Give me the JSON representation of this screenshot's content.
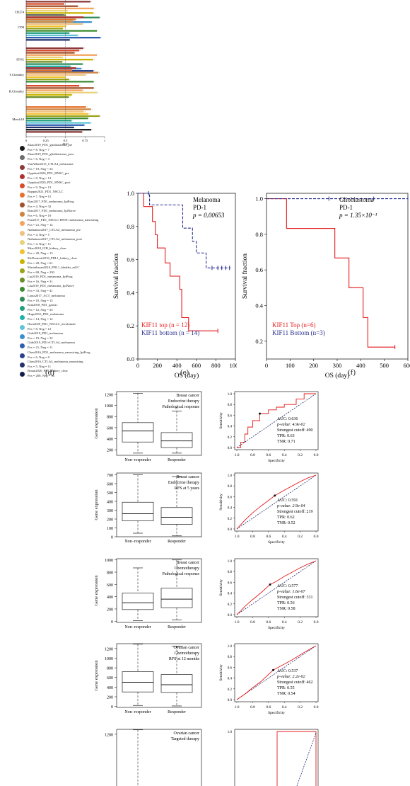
{
  "panel_labels": {
    "d": "(d)",
    "e": "(e)",
    "f": "(f)"
  },
  "colors": {
    "red": "#e41a1c",
    "blue": "#2a2f8f",
    "black": "#000000"
  },
  "legend": [
    {
      "name": "Zhao2019_PD1_glioblastoma_pre",
      "count": "Pos = 8, Neg = 7",
      "color": "#1a1a1a"
    },
    {
      "name": "Zhao2019_PD1_glioblastoma_post",
      "count": "Pos = 6, Neg = 3",
      "color": "#6e6e6e"
    },
    {
      "name": "VanAllen2015_CTLA4_melanoma",
      "count": "Pos = 19, Neg = 23",
      "color": "#8c3a3a"
    },
    {
      "name": "Uppaluri2020_PD1_HNSC_pre",
      "count": "Pos = 8, Neg = 13",
      "color": "#b33030"
    },
    {
      "name": "Uppaluri2020_PD1_HNSC_post",
      "count": "Pos = 9, Neg = 13",
      "color": "#d94b2b"
    },
    {
      "name": "Ruppin2021_PD1_NSCLC",
      "count": "Pos = 7, Neg = 15",
      "color": "#e8722c"
    },
    {
      "name": "Riaz2017_PD1_melanoma_IpiProg",
      "count": "Pos = 4, Neg = 32",
      "color": "#a0522d"
    },
    {
      "name": "Riaz2017_PD1_melanoma_IpiNaive",
      "count": "Pos = 6, Neg = 19",
      "color": "#cd853f"
    },
    {
      "name": "Prat2017_PD1_NSCLC-HNSC-melanoma_nanostring",
      "count": "Pos = 21, Neg = 12",
      "color": "#f4a460"
    },
    {
      "name": "Nathanson2017_CTLA4_melanoma_pre",
      "count": "Pos = 4, Neg = 5",
      "color": "#f0c080"
    },
    {
      "name": "Nathanson2017_CTLA4_melanoma_post",
      "count": "Pos = 4, Neg = 11",
      "color": "#e9d27a"
    },
    {
      "name": "Miao2018_ICB_kidney_clear",
      "count": "Pos = 20, Neg = 13",
      "color": "#f2c12e"
    },
    {
      "name": "McDermott2018_PDL1_kidney_clear",
      "count": "Pos = 20, Neg = 61",
      "color": "#c8b400"
    },
    {
      "name": "Mariathasan2018_PDL1_bladder_mUC",
      "count": "Pos = 68, Neg = 230",
      "color": "#9aa31a"
    },
    {
      "name": "Liu2019_PD1_melanoma_IpiProg",
      "count": "Pos = 16, Neg = 31",
      "color": "#6b8e23"
    },
    {
      "name": "Liu2019_PD1_melanoma_IpiNaive",
      "count": "Pos = 33, Neg = 41",
      "color": "#3c8d2f"
    },
    {
      "name": "Lauss2017_ACT_melanoma",
      "count": "Pos = 10, Neg = 15",
      "color": "#2e8b57"
    },
    {
      "name": "Kim2018_PD1_gastric",
      "count": "Pos = 12, Neg = 33",
      "color": "#20a080"
    },
    {
      "name": "Hugo2016_PD1_melanoma",
      "count": "Pos = 14, Neg = 12",
      "color": "#20b2aa"
    },
    {
      "name": "Hwu2020_PD1_NSCLC_nivolumab",
      "count": "Pos = 8, Neg = 12",
      "color": "#5fc4d6"
    },
    {
      "name": "Gide2019_PD1_melanoma",
      "count": "Pos = 19, Neg = 32",
      "color": "#3a8fd0"
    },
    {
      "name": "Gide2019_PD1+CTLA4_melanoma",
      "count": "Pos = 21, Neg = 11",
      "color": "#2c5fb0"
    },
    {
      "name": "Chen2016_PD1_melanoma_nanostring_IpiProg",
      "count": "Pos = 6, Neg = 9",
      "color": "#2a3f8f"
    },
    {
      "name": "Chen2016_CTLA4_melanoma_nanostring",
      "count": "Pos = 5, Neg = 11",
      "color": "#22306e"
    },
    {
      "name": "Braun2020_PD1_kidney_clear",
      "count": "Pos = 200, Neg = 94",
      "color": "#141c4a"
    }
  ],
  "chart_data": [
    {
      "type": "bar",
      "title": "",
      "xlabel": "AUC",
      "ylabel": "",
      "xlim": [
        0,
        1
      ],
      "xticks": [
        "0",
        "0.25",
        "0.5",
        "0.75",
        "1"
      ],
      "categories": [
        "CD274",
        "CD8",
        "IFNG",
        "T.Clonality",
        "B.Clonality",
        "Merck18"
      ],
      "bars_per_group": [
        11,
        12,
        11,
        7,
        6,
        12
      ],
      "values_approx_range": [
        0.45,
        0.95
      ],
      "orientation": "horizontal",
      "legend_position": "below"
    },
    {
      "type": "line",
      "subtype": "kaplan-meier",
      "annotation": [
        "Melanoma",
        "PD-1",
        "p = 0.00653"
      ],
      "xlabel": "OS (day)",
      "ylabel": "Survival fraction",
      "xlim": [
        0,
        1000
      ],
      "ylim": [
        0,
        1
      ],
      "xticks": [
        "0",
        "200",
        "400",
        "600",
        "800",
        "1000"
      ],
      "yticks": [
        "0.0",
        "0.2",
        "0.4",
        "0.6",
        "0.8",
        "1.0"
      ],
      "series": [
        {
          "name": "KIF11 top (n = 12)",
          "color": "#e41a1c",
          "dashed": false,
          "x": [
            0,
            60,
            60,
            150,
            150,
            180,
            180,
            200,
            200,
            280,
            280,
            330,
            330,
            430,
            430,
            450,
            450,
            520,
            520,
            820
          ],
          "y": [
            1.0,
            1.0,
            0.92,
            0.92,
            0.83,
            0.83,
            0.75,
            0.75,
            0.67,
            0.67,
            0.58,
            0.58,
            0.5,
            0.5,
            0.42,
            0.42,
            0.25,
            0.25,
            0.17,
            0.17
          ],
          "censor_x": [
            820
          ]
        },
        {
          "name": "KIF11 bottom (n = 14)",
          "color": "#2a2f8f",
          "dashed": true,
          "x": [
            0,
            120,
            120,
            460,
            460,
            560,
            560,
            600,
            600,
            700,
            700,
            950
          ],
          "y": [
            1.0,
            1.0,
            0.93,
            0.93,
            0.79,
            0.79,
            0.71,
            0.71,
            0.64,
            0.64,
            0.55,
            0.55
          ],
          "censor_x": [
            110,
            760,
            820,
            860,
            900,
            940
          ]
        }
      ]
    },
    {
      "type": "line",
      "subtype": "kaplan-meier",
      "annotation": [
        "Glioblastoma",
        "PD-1",
        "p = 1.35×10⁻¹"
      ],
      "xlabel": "OS (day)",
      "ylabel": "Survival fraction",
      "xlim": [
        0,
        600
      ],
      "ylim": [
        0.1,
        1.03
      ],
      "xticks": [
        "0",
        "100",
        "200",
        "300",
        "400",
        "500",
        "600"
      ],
      "yticks": [
        "0.2",
        "0.4",
        "0.6",
        "0.8",
        "1.0"
      ],
      "series": [
        {
          "name": "KIF11 Top (n=6)",
          "color": "#e41a1c",
          "dashed": false,
          "x": [
            0,
            85,
            85,
            290,
            290,
            350,
            350,
            410,
            410,
            430,
            430,
            545
          ],
          "y": [
            1.0,
            1.0,
            0.833,
            0.833,
            0.667,
            0.667,
            0.5,
            0.5,
            0.333,
            0.333,
            0.167,
            0.167
          ],
          "censor_x": [
            545
          ]
        },
        {
          "name": "KIF11 Bottom (n=3)",
          "color": "#2a2f8f",
          "dashed": true,
          "x": [
            0,
            600
          ],
          "y": [
            1.0,
            1.0
          ],
          "censor_x": [
            265,
            455,
            600
          ]
        }
      ]
    },
    {
      "type": "box",
      "title": "",
      "annotation": [
        "Breast cancer",
        "Endocrine therapy",
        "Pathological response"
      ],
      "categories": [
        "Non−responder",
        "Responder"
      ],
      "ylabel": "Gene expression",
      "ylim": [
        100,
        1250
      ],
      "yticks": [
        200,
        400,
        600,
        800,
        1000,
        1200
      ],
      "boxes": [
        {
          "min": 140,
          "q1": 340,
          "median": 540,
          "q3": 690,
          "max": 1220
        },
        {
          "min": 140,
          "q1": 240,
          "median": 360,
          "q3": 510,
          "max": 900
        }
      ]
    },
    {
      "type": "line",
      "subtype": "roc",
      "xlabel": "Specificity",
      "ylabel": "Sensitivity",
      "xticks": [
        "1.0",
        "0.8",
        "0.6",
        "0.4",
        "0.2",
        "0.0"
      ],
      "yticks": [
        "0.0",
        "0.2",
        "0.4",
        "0.6",
        "0.8",
        "1.0"
      ],
      "stats": [
        "AUC: 0.636",
        "p-value: 4.9e-02",
        "Strongest cutoff: 490",
        "TPR: 0.63",
        "TNR: 0.71"
      ],
      "x_fpr": [
        0,
        0.05,
        0.05,
        0.1,
        0.1,
        0.14,
        0.14,
        0.2,
        0.2,
        0.29,
        0.29,
        0.4,
        0.4,
        0.5,
        0.5,
        0.6,
        0.6,
        0.75,
        0.75,
        0.85,
        0.85,
        1.0
      ],
      "y_tpr": [
        0,
        0,
        0.1,
        0.1,
        0.25,
        0.25,
        0.38,
        0.38,
        0.5,
        0.5,
        0.63,
        0.63,
        0.7,
        0.7,
        0.75,
        0.75,
        0.8,
        0.8,
        0.9,
        0.9,
        1.0,
        1.0
      ],
      "cutoff_point": [
        0.29,
        0.63
      ]
    },
    {
      "type": "box",
      "title": "",
      "annotation": [
        "Breast cancer",
        "Endocrine therapy",
        "RFS at 5 years"
      ],
      "categories": [
        "Non−responder",
        "Responder"
      ],
      "ylabel": "Gene expression",
      "ylim": [
        0,
        720
      ],
      "yticks": [
        0,
        100,
        200,
        300,
        400,
        500,
        600,
        700
      ],
      "boxes": [
        {
          "min": 40,
          "q1": 180,
          "median": 260,
          "q3": 390,
          "max": 700
        },
        {
          "min": 10,
          "q1": 140,
          "median": 220,
          "q3": 330,
          "max": 680
        }
      ]
    },
    {
      "type": "line",
      "subtype": "roc",
      "xlabel": "Specificity",
      "ylabel": "Sensitivity",
      "xticks": [
        "1.0",
        "0.8",
        "0.6",
        "0.4",
        "0.2",
        "0.0"
      ],
      "yticks": [
        "0.0",
        "0.2",
        "0.4",
        "0.6",
        "0.8",
        "1.0"
      ],
      "stats": [
        "AUC: 0.591",
        "p-value: 2.9e-04",
        "Strongest cutoff: 219",
        "TPR: 0.62",
        "TNR: 0.52"
      ],
      "x_fpr": [
        0,
        0.05,
        0.1,
        0.2,
        0.3,
        0.4,
        0.48,
        0.6,
        0.7,
        0.8,
        0.9,
        1.0
      ],
      "y_tpr": [
        0,
        0.08,
        0.16,
        0.3,
        0.42,
        0.53,
        0.62,
        0.72,
        0.8,
        0.88,
        0.95,
        1.0
      ],
      "cutoff_point": [
        0.48,
        0.62
      ]
    },
    {
      "type": "box",
      "title": "",
      "annotation": [
        "Breast cancer",
        "Chemotherapy",
        "Pathological response"
      ],
      "categories": [
        "Non−responder",
        "Responder"
      ],
      "ylabel": "Gene expression",
      "ylim": [
        -20,
        1020
      ],
      "yticks": [
        0,
        200,
        400,
        600,
        800,
        1000
      ],
      "boxes": [
        {
          "min": 10,
          "q1": 190,
          "median": 300,
          "q3": 460,
          "max": 870
        },
        {
          "min": 20,
          "q1": 220,
          "median": 360,
          "q3": 540,
          "max": 1000
        }
      ]
    },
    {
      "type": "line",
      "subtype": "roc",
      "xlabel": "Specificity",
      "ylabel": "Sensitivity",
      "xticks": [
        "1.0",
        "0.8",
        "0.6",
        "0.4",
        "0.2",
        "0.0"
      ],
      "yticks": [
        "0.0",
        "0.2",
        "0.4",
        "0.6",
        "0.8",
        "1.0"
      ],
      "stats": [
        "AUC: 0.577",
        "p-value: 1.6e-07",
        "Strongest cutoff: 331",
        "TPR: 0.56",
        "TNR: 0.58"
      ],
      "x_fpr": [
        0,
        0.05,
        0.1,
        0.2,
        0.3,
        0.42,
        0.5,
        0.6,
        0.7,
        0.8,
        0.9,
        1.0
      ],
      "y_tpr": [
        0,
        0.07,
        0.15,
        0.28,
        0.4,
        0.56,
        0.62,
        0.71,
        0.79,
        0.87,
        0.94,
        1.0
      ],
      "cutoff_point": [
        0.42,
        0.56
      ]
    },
    {
      "type": "box",
      "title": "",
      "annotation": [
        "Ovarian cancer",
        "Chemotherapy",
        "RFS at 12 months"
      ],
      "categories": [
        "Non−responder",
        "Responder"
      ],
      "ylabel": "Gene expression",
      "ylim": [
        -20,
        1300
      ],
      "yticks": [
        0,
        200,
        400,
        600,
        800,
        1000,
        1200
      ],
      "boxes": [
        {
          "min": 20,
          "q1": 300,
          "median": 500,
          "q3": 720,
          "max": 1290
        },
        {
          "min": 10,
          "q1": 290,
          "median": 450,
          "q3": 660,
          "max": 1250
        }
      ]
    },
    {
      "type": "line",
      "subtype": "roc",
      "xlabel": "Specificity",
      "ylabel": "Sensitivity",
      "xticks": [
        "1.0",
        "0.8",
        "0.6",
        "0.4",
        "0.2",
        "0.0"
      ],
      "yticks": [
        "0.0",
        "0.2",
        "0.4",
        "0.6",
        "0.8",
        "1.0"
      ],
      "stats": [
        "AUC: 0.537",
        "p-value: 2.2e-02",
        "Strongest cutoff: 462",
        "TPR: 0.55",
        "TNR: 0.54"
      ],
      "x_fpr": [
        0,
        0.1,
        0.2,
        0.3,
        0.46,
        0.6,
        0.7,
        0.8,
        0.9,
        1.0
      ],
      "y_tpr": [
        0,
        0.1,
        0.22,
        0.33,
        0.55,
        0.66,
        0.74,
        0.83,
        0.92,
        1.0
      ],
      "cutoff_point": [
        0.46,
        0.55
      ]
    },
    {
      "type": "box",
      "title": "",
      "partial": true,
      "annotation": [
        "Ovarian cancer",
        "Targeted therapy"
      ],
      "categories": [],
      "ylabel": "",
      "ylim": [
        -20,
        1300
      ],
      "yticks": [
        1200
      ],
      "boxes": [
        {
          "min": 0,
          "q1": 0,
          "median": 0,
          "q3": 0,
          "max": 1290
        }
      ]
    },
    {
      "type": "line",
      "subtype": "roc",
      "partial": true,
      "yticks": [
        "1.0"
      ]
    }
  ]
}
